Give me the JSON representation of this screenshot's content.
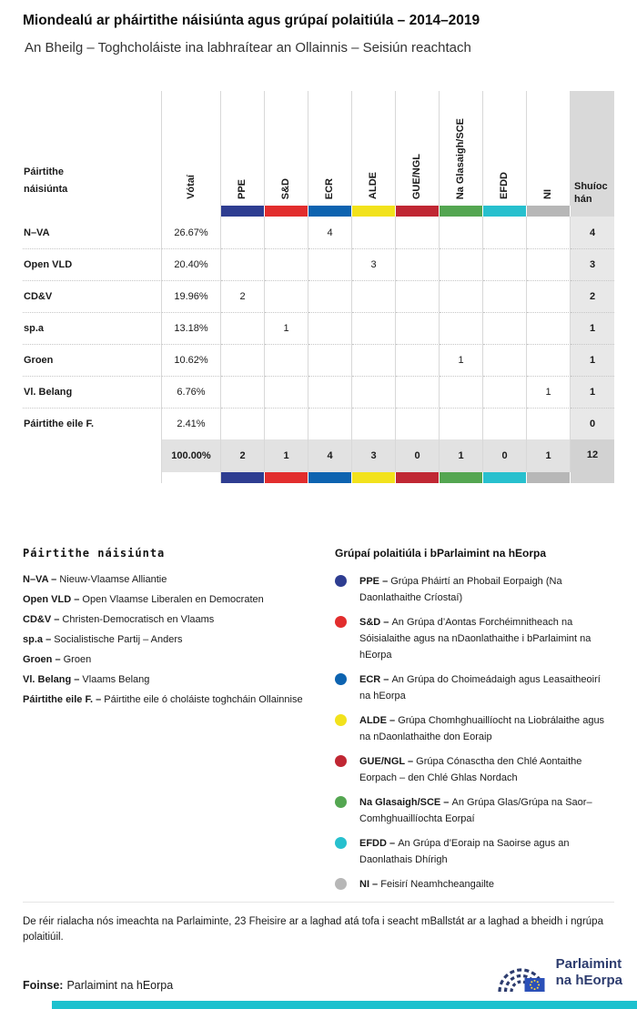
{
  "header": {
    "title": "Miondealú ar pháirtithe náisiúnta agus grúpaí polaitiúla – 2014–2019",
    "subtitle": "An Bheilg – Toghcholáiste ina labhraítear an Ollainnis – Seisiún reachtach"
  },
  "table": {
    "party_col_label_lines": [
      "Páirtithe",
      "náisiúnta"
    ],
    "votes_col_label": "Vótaí",
    "seats_col_label_lines": [
      "Shuíoc",
      "hán"
    ],
    "groups": [
      {
        "label": "PPE",
        "color": "#2e3d91"
      },
      {
        "label": "S&D",
        "color": "#e22d2d"
      },
      {
        "label": "ECR",
        "color": "#0d63b0"
      },
      {
        "label": "ALDE",
        "color": "#f2e21c"
      },
      {
        "label": "GUE/NGL",
        "color": "#c02733"
      },
      {
        "label": "Na Glasaigh/SCE",
        "color": "#54a651"
      },
      {
        "label": "EFDD",
        "color": "#27c0ce"
      },
      {
        "label": "NI",
        "color": "#b7b7b7"
      }
    ]
  },
  "chart_data": {
    "type": "table",
    "title": "Miondealú ar pháirtithe náisiúnta agus grúpaí polaitiúla – 2014–2019",
    "subtitle": "An Bheilg – Toghcholáiste ina labhraítear an Ollainnis – Seisiún reachtach",
    "columns": [
      "Páirtithe náisiúnta",
      "Vótaí",
      "PPE",
      "S&D",
      "ECR",
      "ALDE",
      "GUE/NGL",
      "Na Glasaigh/SCE",
      "EFDD",
      "NI",
      "Shuíochán"
    ],
    "rows": [
      {
        "party": "N–VA",
        "votes": "26.67%",
        "seats_by_group": {
          "ECR": 4
        },
        "total_seats": 4
      },
      {
        "party": "Open VLD",
        "votes": "20.40%",
        "seats_by_group": {
          "ALDE": 3
        },
        "total_seats": 3
      },
      {
        "party": "CD&V",
        "votes": "19.96%",
        "seats_by_group": {
          "PPE": 2
        },
        "total_seats": 2
      },
      {
        "party": "sp.a",
        "votes": "13.18%",
        "seats_by_group": {
          "S&D": 1
        },
        "total_seats": 1
      },
      {
        "party": "Groen",
        "votes": "10.62%",
        "seats_by_group": {
          "Na Glasaigh/SCE": 1
        },
        "total_seats": 1
      },
      {
        "party": "Vl. Belang",
        "votes": "6.76%",
        "seats_by_group": {
          "NI": 1
        },
        "total_seats": 1
      },
      {
        "party": "Páirtithe eile F.",
        "votes": "2.41%",
        "seats_by_group": {},
        "total_seats": 0
      }
    ],
    "total_row": {
      "votes": "100.00%",
      "seats_by_group": {
        "PPE": 2,
        "S&D": 1,
        "ECR": 4,
        "ALDE": 3,
        "GUE/NGL": 0,
        "Na Glasaigh/SCE": 1,
        "EFDD": 0,
        "NI": 1
      },
      "total_seats": 12
    }
  },
  "legend_parties": {
    "title": "Páirtithe náisiúnta",
    "items": [
      {
        "abbr": "N–VA",
        "name": "Nieuw-Vlaamse Alliantie"
      },
      {
        "abbr": "Open VLD",
        "name": "Open Vlaamse Liberalen en Democraten"
      },
      {
        "abbr": "CD&V",
        "name": "Christen-Democratisch en Vlaams"
      },
      {
        "abbr": "sp.a",
        "name": "Socialistische Partij – Anders"
      },
      {
        "abbr": "Groen",
        "name": "Groen"
      },
      {
        "abbr": "Vl. Belang",
        "name": "Vlaams Belang"
      },
      {
        "abbr": "Páirtithe eile F.",
        "name": "Páirtithe eile ó choláiste toghcháin Ollainnise"
      }
    ]
  },
  "legend_groups": {
    "title": "Grúpaí polaitiúla i bParlaimint na hEorpa",
    "items": [
      {
        "abbr": "PPE",
        "desc": "Grúpa Pháirtí an Phobail Eorpaigh (Na Daonlathaithe Críostaí)",
        "color": "#2e3d91"
      },
      {
        "abbr": "S&D",
        "desc": "An Grúpa d’Aontas Forchéimnitheach na Sóisialaithe agus na nDaonlathaithe i bParlaimint na hEorpa",
        "color": "#e22d2d"
      },
      {
        "abbr": "ECR",
        "desc": "An Grúpa do Choimeádaigh agus Leasaitheoirí na hEorpa",
        "color": "#0d63b0"
      },
      {
        "abbr": "ALDE",
        "desc": "Grúpa Chomhghuaillíocht na Liobrálaithe agus na nDaonlathaithe don Eoraip",
        "color": "#f2e21c"
      },
      {
        "abbr": "GUE/NGL",
        "desc": "Grúpa Cónasctha den Chlé Aontaithe Eorpach – den Chlé Ghlas Nordach",
        "color": "#c02733"
      },
      {
        "abbr": "Na Glasaigh/SCE",
        "desc": "An Grúpa Glas/Grúpa na Saor–Comhghuaillíochta Eorpaí",
        "color": "#54a651"
      },
      {
        "abbr": "EFDD",
        "desc": "An Grúpa d’Eoraip na Saoirse agus an Daonlathais Dhírigh",
        "color": "#27c0ce"
      },
      {
        "abbr": "NI",
        "desc": "Feisirí Neamhcheangailte",
        "color": "#b7b7b7"
      }
    ]
  },
  "footer": {
    "note": "De réir rialacha nós imeachta na Parlaiminte, 23 Fheisire ar a laghad atá tofa i seacht mBallstát ar a laghad a bheidh i ngrúpa polaitiúil.",
    "source_label": "Foinse:",
    "source_text": "Parlaimint na hEorpa",
    "logo_lines": [
      "Parlaimint",
      "na hEorpa"
    ]
  },
  "colors": {
    "accent_bar": "#1dc1ce",
    "seats_header_bg": "#d9d9d9",
    "seats_cell_bg": "#e8e8e8",
    "total_row_bg": "#e2e2e2",
    "total_seats_bg": "#d2d2d2",
    "logo_navy": "#2d3c6e"
  }
}
